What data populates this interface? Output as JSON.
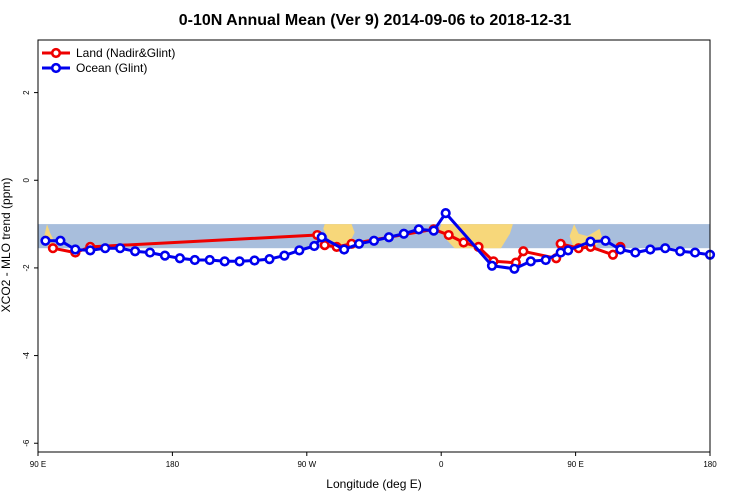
{
  "chart_data": {
    "type": "line",
    "title": "0-10N Annual Mean (Ver 9)   2014-09-06 to 2018-12-31",
    "xlabel": "Longitude (deg E)",
    "ylabel": "XCO2 - MLO trend (ppm)",
    "xlim": [
      90,
      540
    ],
    "ylim": [
      -6.2,
      3.2
    ],
    "x_ticks": [
      {
        "value": 90,
        "label": "90 E"
      },
      {
        "value": 180,
        "label": "180"
      },
      {
        "value": 270,
        "label": "90 W"
      },
      {
        "value": 360,
        "label": "0"
      },
      {
        "value": 450,
        "label": "90 E"
      },
      {
        "value": 540,
        "label": "180"
      }
    ],
    "y_ticks": [
      {
        "value": 2,
        "label": "2"
      },
      {
        "value": 0,
        "label": "0"
      },
      {
        "value": -2,
        "label": "-2"
      },
      {
        "value": -4,
        "label": "-4"
      },
      {
        "value": -6,
        "label": "-6"
      }
    ],
    "legend_position": "top-left",
    "map_band": {
      "y_range": [
        -1.0,
        -1.55
      ],
      "ocean_color": "#a8bedc",
      "land_color": "#f7d77a"
    },
    "series": [
      {
        "name": "Land (Nadir&Glint)",
        "color": "#ee0000",
        "points": [
          [
            100,
            -1.55
          ],
          [
            115,
            -1.65
          ],
          [
            125,
            -1.52
          ],
          [
            277,
            -1.25
          ],
          [
            282,
            -1.48
          ],
          [
            290,
            -1.52
          ],
          [
            300,
            -1.45
          ],
          [
            355,
            -1.12
          ],
          [
            365,
            -1.25
          ],
          [
            375,
            -1.42
          ],
          [
            385,
            -1.52
          ],
          [
            395,
            -1.85
          ],
          [
            410,
            -1.88
          ],
          [
            415,
            -1.62
          ],
          [
            437,
            -1.78
          ],
          [
            440,
            -1.45
          ],
          [
            452,
            -1.55
          ],
          [
            460,
            -1.52
          ],
          [
            475,
            -1.7
          ],
          [
            480,
            -1.52
          ]
        ]
      },
      {
        "name": "Ocean (Glint)",
        "color": "#0000ee",
        "points": [
          [
            95,
            -1.38
          ],
          [
            105,
            -1.38
          ],
          [
            115,
            -1.58
          ],
          [
            125,
            -1.6
          ],
          [
            135,
            -1.55
          ],
          [
            145,
            -1.55
          ],
          [
            155,
            -1.62
          ],
          [
            165,
            -1.65
          ],
          [
            175,
            -1.72
          ],
          [
            185,
            -1.78
          ],
          [
            195,
            -1.82
          ],
          [
            205,
            -1.82
          ],
          [
            215,
            -1.85
          ],
          [
            225,
            -1.85
          ],
          [
            235,
            -1.83
          ],
          [
            245,
            -1.8
          ],
          [
            255,
            -1.72
          ],
          [
            265,
            -1.6
          ],
          [
            275,
            -1.5
          ],
          [
            280,
            -1.3
          ],
          [
            295,
            -1.58
          ],
          [
            305,
            -1.45
          ],
          [
            315,
            -1.38
          ],
          [
            325,
            -1.3
          ],
          [
            335,
            -1.22
          ],
          [
            345,
            -1.12
          ],
          [
            355,
            -1.15
          ],
          [
            363,
            -0.75
          ],
          [
            394,
            -1.95
          ],
          [
            409,
            -2.02
          ],
          [
            420,
            -1.85
          ],
          [
            430,
            -1.82
          ],
          [
            440,
            -1.65
          ],
          [
            445,
            -1.6
          ],
          [
            460,
            -1.4
          ],
          [
            470,
            -1.38
          ],
          [
            480,
            -1.58
          ],
          [
            490,
            -1.65
          ],
          [
            500,
            -1.58
          ],
          [
            510,
            -1.55
          ],
          [
            520,
            -1.62
          ],
          [
            530,
            -1.65
          ],
          [
            540,
            -1.7
          ]
        ]
      }
    ]
  }
}
